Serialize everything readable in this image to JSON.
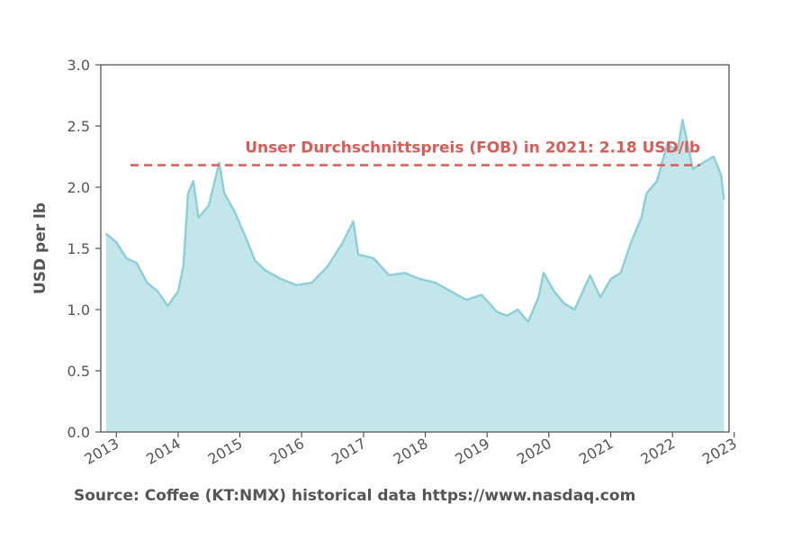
{
  "chart_data": {
    "type": "area",
    "ylabel": "USD per lb",
    "ylim": [
      0,
      3.0
    ],
    "xlim": [
      "2012-10-01",
      "2022-12-01"
    ],
    "y_ticks": [
      "0.0",
      "0.5",
      "1.0",
      "1.5",
      "2.0",
      "2.5",
      "3.0"
    ],
    "x_ticks": [
      "2013",
      "2014",
      "2015",
      "2016",
      "2017",
      "2018",
      "2019",
      "2020",
      "2021",
      "2022",
      "2023"
    ],
    "series": [
      {
        "x": [
          "2012-11-01",
          "2013-01-01",
          "2013-03-01",
          "2013-05-01",
          "2013-07-01",
          "2013-09-01",
          "2013-11-01",
          "2014-01-01",
          "2014-02-01",
          "2014-03-01",
          "2014-04-01",
          "2014-05-01",
          "2014-07-01",
          "2014-09-01",
          "2014-10-01",
          "2014-12-01",
          "2015-02-01",
          "2015-04-01",
          "2015-06-01",
          "2015-09-01",
          "2015-12-01",
          "2016-03-01",
          "2016-06-01",
          "2016-09-01",
          "2016-11-01",
          "2016-12-01",
          "2017-03-01",
          "2017-06-01",
          "2017-09-01",
          "2017-12-01",
          "2018-03-01",
          "2018-06-01",
          "2018-09-01",
          "2018-12-01",
          "2019-03-01",
          "2019-05-01",
          "2019-07-01",
          "2019-09-01",
          "2019-11-01",
          "2019-12-01",
          "2020-02-01",
          "2020-04-01",
          "2020-06-01",
          "2020-09-01",
          "2020-11-01",
          "2021-01-01",
          "2021-03-01",
          "2021-05-01",
          "2021-07-01",
          "2021-08-01",
          "2021-10-01",
          "2021-12-01",
          "2022-02-01",
          "2022-03-01",
          "2022-05-01",
          "2022-07-01",
          "2022-09-01",
          "2022-10-15",
          "2022-11-01"
        ],
        "y": [
          1.62,
          1.55,
          1.42,
          1.38,
          1.22,
          1.15,
          1.03,
          1.15,
          1.35,
          1.95,
          2.05,
          1.75,
          1.85,
          2.2,
          1.95,
          1.8,
          1.6,
          1.4,
          1.32,
          1.25,
          1.2,
          1.22,
          1.35,
          1.55,
          1.72,
          1.45,
          1.42,
          1.28,
          1.3,
          1.25,
          1.22,
          1.15,
          1.08,
          1.12,
          0.98,
          0.95,
          1.0,
          0.9,
          1.1,
          1.3,
          1.15,
          1.05,
          1.0,
          1.28,
          1.1,
          1.25,
          1.3,
          1.55,
          1.75,
          1.95,
          2.05,
          2.35,
          2.3,
          2.55,
          2.15,
          2.2,
          2.25,
          2.1,
          1.9
        ],
        "color": "#8ecfd8"
      }
    ],
    "reference_line": {
      "y": 2.18,
      "label": "Unser Durchschnittspreis (FOB) in 2021: 2.18 USD/lb",
      "color": "#e05a55"
    },
    "fill_color": "#c2e6e9",
    "grid": false
  },
  "source": "Source: Coffee (KT:NMX) historical data https://www.nasdaq.com"
}
